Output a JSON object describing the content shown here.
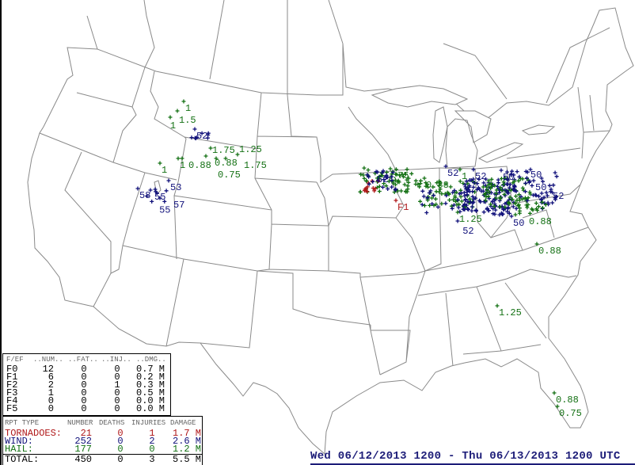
{
  "title": "Wed 06/12/2013 1200 - Thu 06/13/2013 1200 UTC",
  "colors": {
    "tornado": "#b0181a",
    "wind": "#10107a",
    "hail": "#137013",
    "total": "#000000",
    "boundary": "#8a8a8a",
    "title": "#1c1c78"
  },
  "fef_table": {
    "headers": [
      "F/EF",
      "..NUM..",
      "..FAT..",
      "..INJ..",
      "..DMG.."
    ],
    "rows": [
      [
        "F0",
        "12",
        "0",
        "0",
        "0.7 M"
      ],
      [
        "F1",
        "6",
        "0",
        "0",
        "0.2 M"
      ],
      [
        "F2",
        "2",
        "0",
        "1",
        "0.3 M"
      ],
      [
        "F3",
        "1",
        "0",
        "0",
        "0.5 M"
      ],
      [
        "F4",
        "0",
        "0",
        "0",
        "0.0 M"
      ],
      [
        "F5",
        "0",
        "0",
        "0",
        "0.0 M"
      ]
    ]
  },
  "summary_table": {
    "headers": [
      "RPT TYPE",
      "NUMBER",
      "DEATHS",
      "INJURIES",
      "DAMAGE"
    ],
    "rows": [
      {
        "type": "TORNADOES:",
        "number": "21",
        "deaths": "0",
        "injuries": "1",
        "damage": "1.7 M",
        "color": "#b0181a"
      },
      {
        "type": "WIND:",
        "number": "252",
        "deaths": "0",
        "injuries": "2",
        "damage": "2.6 M",
        "color": "#10107a"
      },
      {
        "type": "HAIL:",
        "number": "177",
        "deaths": "0",
        "injuries": "0",
        "damage": "1.2 M",
        "color": "#137013"
      },
      {
        "type": "TOTAL:",
        "number": "450",
        "deaths": "0",
        "injuries": "3",
        "damage": "5.5 M",
        "color": "#000000"
      }
    ]
  },
  "reports": [
    {
      "type": "hail",
      "label": "1"
    },
    {
      "type": "hail",
      "label": "1.5"
    },
    {
      "type": "hail",
      "label": "1"
    },
    {
      "type": "wind",
      "label": "52"
    },
    {
      "type": "hail",
      "label": "1"
    },
    {
      "type": "hail",
      "label": "1"
    },
    {
      "type": "hail",
      "label": "0.88"
    },
    {
      "type": "hail",
      "label": "0.88"
    },
    {
      "type": "hail",
      "label": "1.75"
    },
    {
      "type": "hail",
      "label": "0.75"
    },
    {
      "type": "hail",
      "label": "1.75"
    },
    {
      "type": "hail",
      "label": "1.25"
    },
    {
      "type": "wind",
      "label": "53"
    },
    {
      "type": "wind",
      "label": "58"
    },
    {
      "type": "wind",
      "label": "55"
    },
    {
      "type": "wind",
      "label": "55"
    },
    {
      "type": "wind",
      "label": "57"
    },
    {
      "type": "hail",
      "label": ".75"
    },
    {
      "type": "wind",
      "label": "52"
    },
    {
      "type": "hail",
      "label": "0.88"
    },
    {
      "type": "wind",
      "label": "52"
    },
    {
      "type": "hail",
      "label": "1"
    },
    {
      "type": "wind",
      "label": "52"
    },
    {
      "type": "tornado",
      "label": "F1"
    },
    {
      "type": "hail",
      "label": "1.25"
    },
    {
      "type": "wind",
      "label": "52"
    },
    {
      "type": "wind",
      "label": "50"
    },
    {
      "type": "wind",
      "label": "50"
    },
    {
      "type": "wind",
      "label": "50"
    },
    {
      "type": "wind",
      "label": "52"
    },
    {
      "type": "wind",
      "label": "50"
    },
    {
      "type": "hail",
      "label": "0.88"
    },
    {
      "type": "hail",
      "label": "0.88"
    },
    {
      "type": "hail",
      "label": "1.25"
    },
    {
      "type": "hail",
      "label": "0.88"
    },
    {
      "type": "hail",
      "label": "0.75"
    }
  ]
}
